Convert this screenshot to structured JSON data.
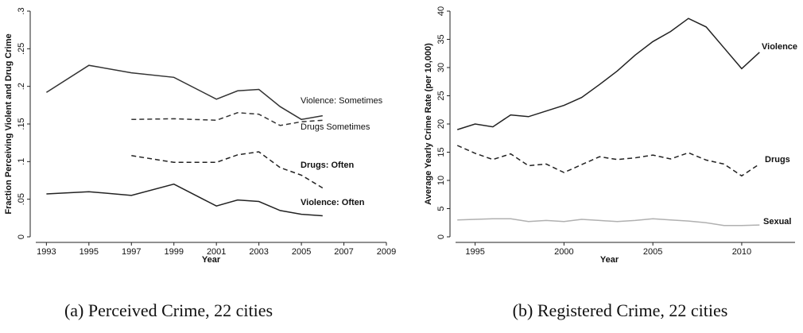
{
  "chart_data": [
    {
      "type": "line",
      "caption": "(a) Perceived Crime, 22 cities",
      "x_label": "Year",
      "y_label": "Fraction Perceiving Violent and Drug Crime",
      "x": [
        1993,
        1995,
        1997,
        1999,
        2001,
        2002,
        2003,
        2004,
        2005,
        2006
      ],
      "xlim": [
        1992.5,
        2009
      ],
      "xticks": [
        1993,
        1995,
        1997,
        1999,
        2001,
        2003,
        2005,
        2007,
        2009
      ],
      "ylim": [
        0,
        0.3
      ],
      "yticks": [
        0,
        {
          "value": 0.05,
          "label": ".05"
        },
        {
          "value": 0.1,
          "label": ".1"
        },
        {
          "value": 0.15,
          "label": ".15"
        },
        {
          "value": 0.2,
          "label": ".2"
        },
        {
          "value": 0.25,
          "label": ".25"
        },
        {
          "value": 0.3,
          "label": ".3"
        }
      ],
      "series": [
        {
          "name": "Violence: Sometimes",
          "color": "#333333",
          "dashed": false,
          "values": [
            0.192,
            0.228,
            0.218,
            0.212,
            0.183,
            0.194,
            0.196,
            0.173,
            0.156,
            0.161
          ]
        },
        {
          "name": "Drugs Sometimes",
          "color": "#333333",
          "dashed": true,
          "values": [
            null,
            null,
            0.156,
            0.157,
            0.155,
            0.165,
            0.163,
            0.148,
            0.153,
            0.155
          ]
        },
        {
          "name": "Drugs: Often",
          "color": "#222222",
          "dashed": true,
          "values": [
            null,
            null,
            0.108,
            0.099,
            0.099,
            0.109,
            0.113,
            0.092,
            0.082,
            0.065
          ]
        },
        {
          "name": "Violence: Often",
          "color": "#222222",
          "dashed": false,
          "values": [
            0.057,
            0.06,
            0.055,
            0.07,
            0.041,
            0.049,
            0.047,
            0.035,
            0.03,
            0.028
          ]
        }
      ]
    },
    {
      "type": "line",
      "caption": "(b) Registered Crime, 22 cities",
      "x_label": "Year",
      "y_label": "Average Yearly Crime Rate (per 10,000)",
      "x": [
        1994,
        1995,
        1996,
        1997,
        1998,
        1999,
        2000,
        2001,
        2002,
        2003,
        2004,
        2005,
        2006,
        2007,
        2008,
        2009,
        2010,
        2011
      ],
      "xlim": [
        1993.9,
        2013
      ],
      "xticks": [
        1995,
        2000,
        2005,
        2010
      ],
      "ylim": [
        0,
        40
      ],
      "yticks": [
        0,
        5,
        10,
        15,
        20,
        25,
        30,
        35,
        40
      ],
      "series": [
        {
          "name": "Violence",
          "color": "#222222",
          "dashed": false,
          "values": [
            19,
            20,
            19.5,
            21.6,
            21.3,
            22.3,
            23.3,
            24.7,
            27,
            29.4,
            32.2,
            34.6,
            36.4,
            38.7,
            37.2,
            33.5,
            29.8,
            32.7
          ]
        },
        {
          "name": "Drugs",
          "color": "#222222",
          "dashed": true,
          "values": [
            16.2,
            14.8,
            13.7,
            14.7,
            12.6,
            12.9,
            11.4,
            12.8,
            14.2,
            13.7,
            14,
            14.5,
            13.8,
            14.9,
            13.6,
            12.9,
            10.8,
            12.9
          ]
        },
        {
          "name": "Sexual",
          "color": "#b0b0b0",
          "dashed": false,
          "values": [
            3,
            3.1,
            3.2,
            3.2,
            2.7,
            2.9,
            2.7,
            3.1,
            2.9,
            2.7,
            2.9,
            3.2,
            3,
            2.8,
            2.5,
            2,
            2,
            2.1
          ]
        }
      ]
    }
  ]
}
